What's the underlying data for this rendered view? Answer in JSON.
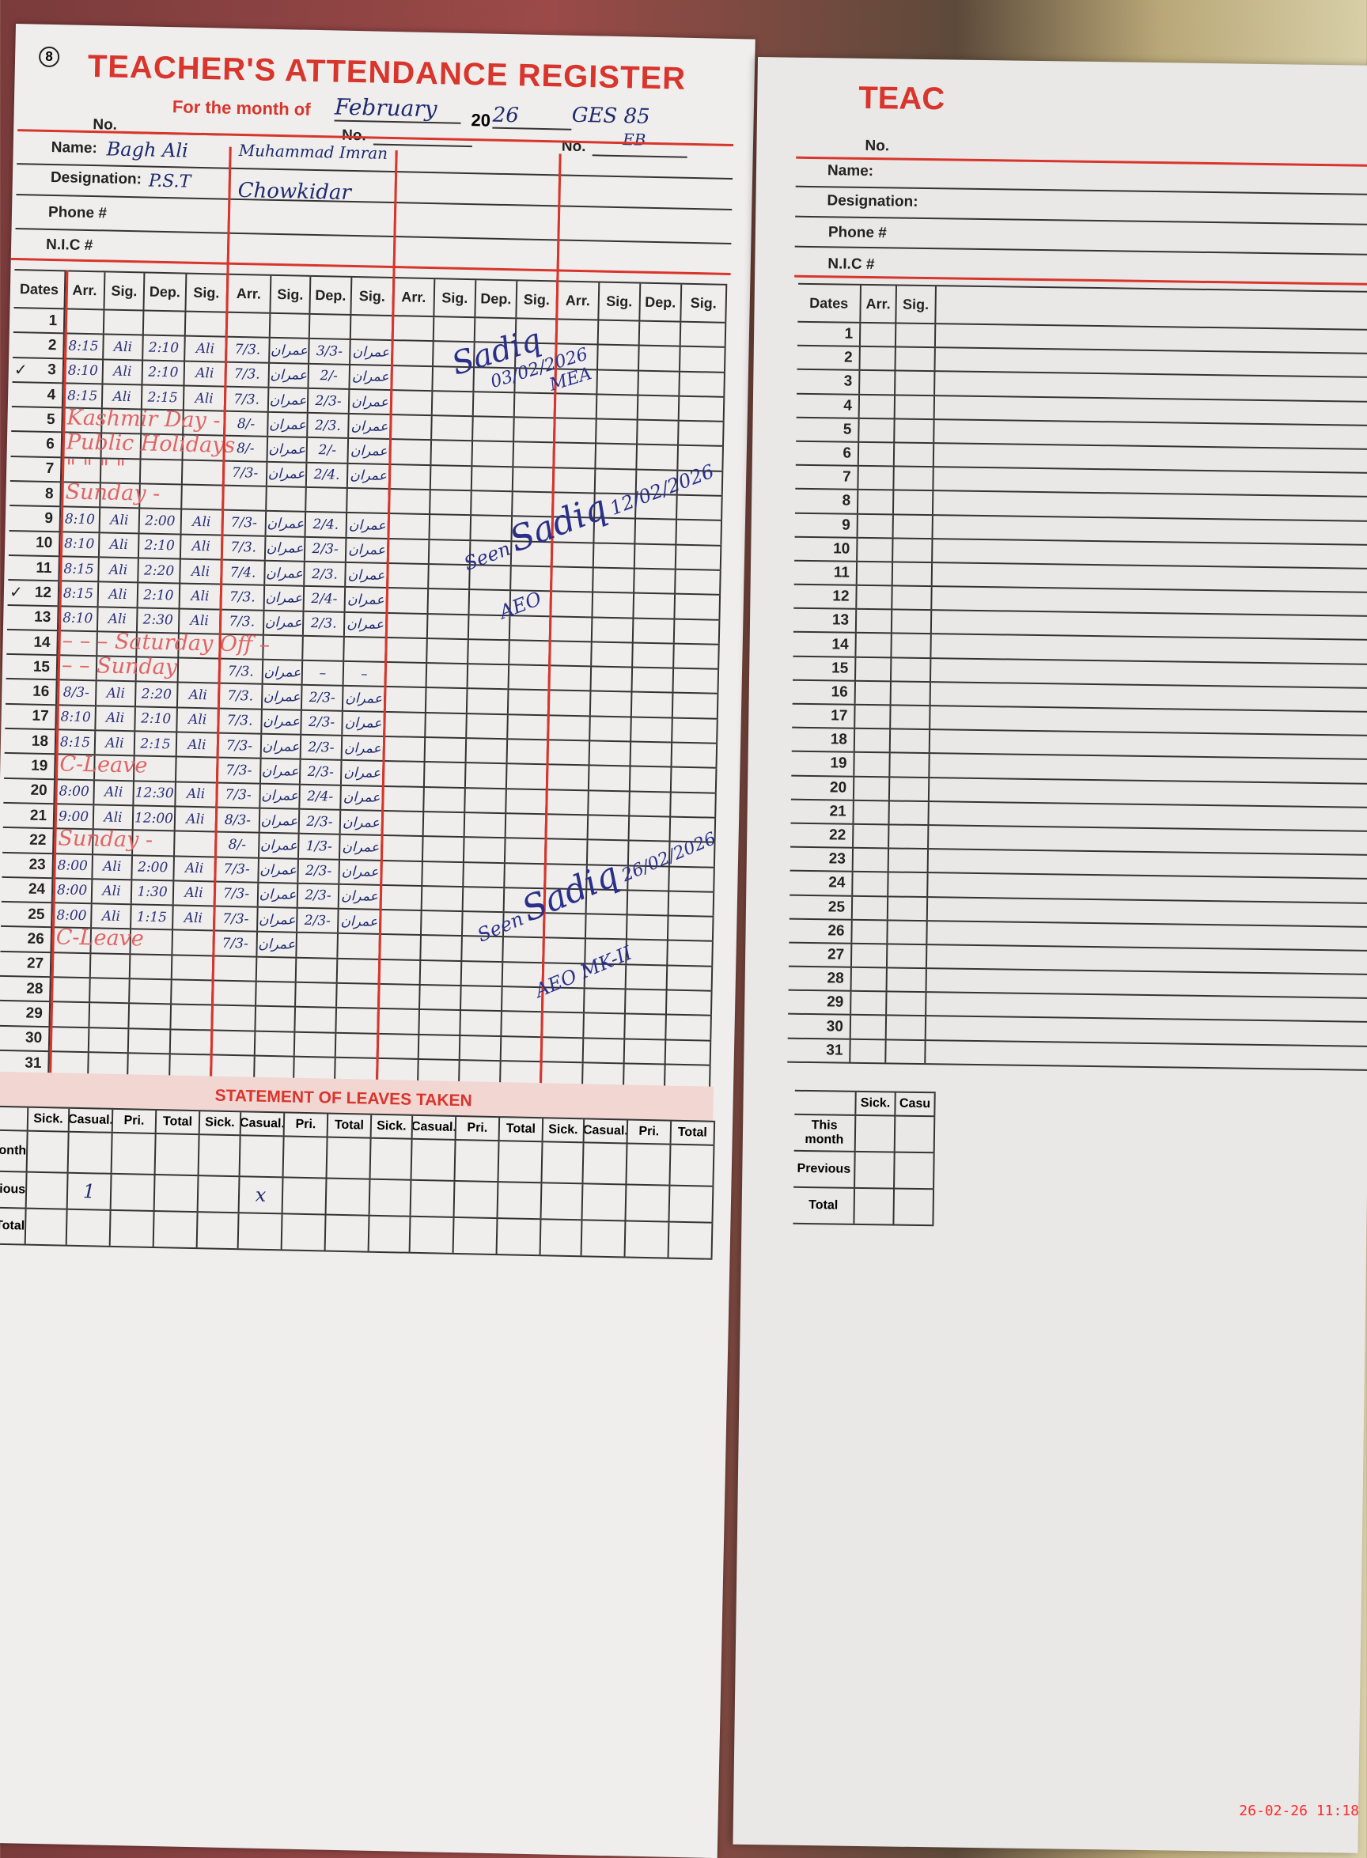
{
  "register": {
    "page_mark": "8",
    "title": "TEACHER'S ATTENDANCE REGISTER",
    "month_label": "For the month of",
    "month_value": "February",
    "year_prefix": "20",
    "year_value": "26",
    "school_code": "GES 85",
    "school_code_sub": "EB",
    "no_label": "No.",
    "name_label": "Name:",
    "designation_label": "Designation:",
    "phone_label": "Phone #",
    "nic_label": "N.I.C #",
    "staff": [
      {
        "name": "Bagh Ali",
        "designation": "P.S.T"
      },
      {
        "name": "Muhammad Imran",
        "designation": "Chowkidar"
      }
    ],
    "columns": [
      "Dates",
      "Arr.",
      "Sig.",
      "Dep.",
      "Sig.",
      "Arr.",
      "Sig.",
      "Dep.",
      "Sig.",
      "Arr.",
      "Sig.",
      "Dep.",
      "Sig.",
      "Arr.",
      "Sig.",
      "Dep.",
      "Sig."
    ],
    "rows": [
      {
        "date": "1",
        "cells": [
          "",
          "",
          "",
          "",
          "",
          "",
          "",
          ""
        ]
      },
      {
        "date": "2",
        "cells": [
          "8:15",
          "Ali",
          "2:10",
          "Ali",
          "7/3.",
          "عمران",
          "3/3-",
          "عمران"
        ]
      },
      {
        "date": "3",
        "tick": "✓",
        "cells": [
          "8:10",
          "Ali",
          "2:10",
          "Ali",
          "7/3.",
          "عمران",
          "2/-",
          "عمران"
        ]
      },
      {
        "date": "4",
        "cells": [
          "8:15",
          "Ali",
          "2:15",
          "Ali",
          "7/3.",
          "عمران",
          "2/3-",
          "عمران"
        ]
      },
      {
        "date": "5",
        "note": "Kashmir Day -",
        "cells": [
          "",
          "",
          "",
          "",
          "8/-",
          "عمران",
          "2/3.",
          "عمران"
        ]
      },
      {
        "date": "6",
        "note": "Public Holidays",
        "cells": [
          "",
          "",
          "",
          "",
          "8/-",
          "عمران",
          "2/-",
          "عمران"
        ]
      },
      {
        "date": "7",
        "note": "\"     \"     \"     \"",
        "cells": [
          "",
          "",
          "",
          "",
          "7/3-",
          "عمران",
          "2/4.",
          "عمران"
        ]
      },
      {
        "date": "8",
        "note": "Sunday -",
        "cells": [
          "",
          "",
          "",
          "",
          "",
          "",
          "",
          ""
        ]
      },
      {
        "date": "9",
        "cells": [
          "8:10",
          "Ali",
          "2:00",
          "Ali",
          "7/3-",
          "عمران",
          "2/4.",
          "عمران"
        ]
      },
      {
        "date": "10",
        "cells": [
          "8:10",
          "Ali",
          "2:10",
          "Ali",
          "7/3.",
          "عمران",
          "2/3-",
          "عمران"
        ]
      },
      {
        "date": "11",
        "cells": [
          "8:15",
          "Ali",
          "2:20",
          "Ali",
          "7/4.",
          "عمران",
          "2/3.",
          "عمران"
        ]
      },
      {
        "date": "12",
        "tick": "✓",
        "cells": [
          "8:15",
          "Ali",
          "2:10",
          "Ali",
          "7/3.",
          "عمران",
          "2/4-",
          "عمران"
        ]
      },
      {
        "date": "13",
        "cells": [
          "8:10",
          "Ali",
          "2:30",
          "Ali",
          "7/3.",
          "عمران",
          "2/3.",
          "عمران"
        ]
      },
      {
        "date": "14",
        "note": "–      –      –   Saturday Off   –",
        "cells": [
          "",
          "",
          "",
          "",
          "",
          "",
          "",
          ""
        ]
      },
      {
        "date": "15",
        "note": "–      –      Sunday",
        "cells": [
          "",
          "",
          "",
          "",
          "7/3.",
          "عمران",
          "–",
          "–"
        ]
      },
      {
        "date": "16",
        "cells": [
          "8/3-",
          "Ali",
          "2:20",
          "Ali",
          "7/3.",
          "عمران",
          "2/3-",
          "عمران"
        ]
      },
      {
        "date": "17",
        "cells": [
          "8:10",
          "Ali",
          "2:10",
          "Ali",
          "7/3.",
          "عمران",
          "2/3-",
          "عمران"
        ]
      },
      {
        "date": "18",
        "cells": [
          "8:15",
          "Ali",
          "2:15",
          "Ali",
          "7/3-",
          "عمران",
          "2/3-",
          "عمران"
        ]
      },
      {
        "date": "19",
        "note": "C-Leave",
        "cells": [
          "",
          "",
          "",
          "",
          "7/3-",
          "عمران",
          "2/3-",
          "عمران"
        ]
      },
      {
        "date": "20",
        "cells": [
          "8:00",
          "Ali",
          "12:30",
          "Ali",
          "7/3-",
          "عمران",
          "2/4-",
          "عمران"
        ]
      },
      {
        "date": "21",
        "cells": [
          "9:00",
          "Ali",
          "12:00",
          "Ali",
          "8/3-",
          "عمران",
          "2/3-",
          "عمران"
        ]
      },
      {
        "date": "22",
        "note": "Sunday -",
        "cells": [
          "",
          "",
          "",
          "",
          "8/-",
          "عمران",
          "1/3-",
          "عمران"
        ]
      },
      {
        "date": "23",
        "cells": [
          "8:00",
          "Ali",
          "2:00",
          "Ali",
          "7/3-",
          "عمران",
          "2/3-",
          "عمران"
        ]
      },
      {
        "date": "24",
        "cells": [
          "8:00",
          "Ali",
          "1:30",
          "Ali",
          "7/3-",
          "عمران",
          "2/3-",
          "عمران"
        ]
      },
      {
        "date": "25",
        "cells": [
          "8:00",
          "Ali",
          "1:15",
          "Ali",
          "7/3-",
          "عمران",
          "2/3-",
          "عمران"
        ]
      },
      {
        "date": "26",
        "note": "C-Leave",
        "cells": [
          "",
          "",
          "",
          "",
          "7/3-",
          "عمران",
          "",
          ""
        ]
      },
      {
        "date": "27",
        "cells": [
          "",
          "",
          "",
          "",
          "",
          "",
          "",
          ""
        ]
      },
      {
        "date": "28",
        "cells": [
          "",
          "",
          "",
          "",
          "",
          "",
          "",
          ""
        ]
      },
      {
        "date": "29",
        "cells": [
          "",
          "",
          "",
          "",
          "",
          "",
          "",
          ""
        ]
      },
      {
        "date": "30",
        "cells": [
          "",
          "",
          "",
          "",
          "",
          "",
          "",
          ""
        ]
      },
      {
        "date": "31",
        "cells": [
          "",
          "",
          "",
          "",
          "",
          "",
          "",
          ""
        ]
      }
    ],
    "annotations": [
      {
        "signature": "Sadiq",
        "date": "03/02/2026",
        "title": "MEA"
      },
      {
        "seen": "Seen",
        "signature": "Sadiq",
        "date": "12/02/2026",
        "title": "AEO"
      },
      {
        "seen": "Seen",
        "signature": "Sadiq",
        "date": "26/02/2026",
        "title": "AEO",
        "extra": "MK-II"
      }
    ],
    "leaves": {
      "title": "STATEMENT OF LEAVES TAKEN",
      "columns": [
        "Sick.",
        "Casual.",
        "Pri.",
        "Total",
        "Sick.",
        "Casual.",
        "Pri.",
        "Total",
        "Sick.",
        "Casual.",
        "Pri.",
        "Total",
        "Sick.",
        "Casual.",
        "Pri.",
        "Total"
      ],
      "rows": [
        {
          "label": "This month",
          "cells": [
            "",
            "",
            "",
            "",
            "",
            "",
            "",
            "",
            "",
            "",
            "",
            "",
            "",
            "",
            "",
            ""
          ]
        },
        {
          "label": "Previous",
          "cells": [
            "",
            "1",
            "",
            "",
            "",
            "x",
            "",
            "",
            "",
            "",
            "",
            "",
            "",
            "",
            "",
            ""
          ]
        },
        {
          "label": "Total",
          "cells": [
            "",
            "",
            "",
            "",
            "",
            "",
            "",
            "",
            "",
            "",
            "",
            "",
            "",
            "",
            "",
            ""
          ]
        }
      ]
    }
  },
  "next_page": {
    "title": "TEAC",
    "no_label": "No.",
    "name_label": "Name:",
    "designation_label": "Designation:",
    "phone_label": "Phone #",
    "nic_label": "N.I.C #",
    "columns": [
      "Dates",
      "Arr.",
      "Sig."
    ],
    "dates": [
      "1",
      "2",
      "3",
      "4",
      "5",
      "6",
      "7",
      "8",
      "9",
      "10",
      "11",
      "12",
      "13",
      "14",
      "15",
      "16",
      "17",
      "18",
      "19",
      "20",
      "21",
      "22",
      "23",
      "24",
      "25",
      "26",
      "27",
      "28",
      "29",
      "30",
      "31"
    ],
    "leave_columns": [
      "Sick.",
      "Casu"
    ],
    "leave_rows": [
      "This month",
      "Previous",
      "Total"
    ]
  },
  "photo_timestamp": "26-02-26  11:18",
  "colors": {
    "ink_red": "#d8352c",
    "pen_blue": "#1f2a6e",
    "paper": "#efeeec"
  }
}
